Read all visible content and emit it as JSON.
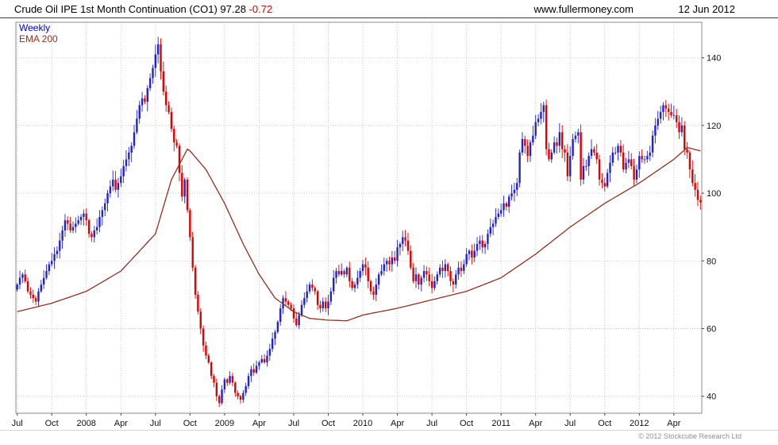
{
  "header": {
    "title_price": "Crude Oil IPE 1st Month Continuation (CO1) 97.28",
    "change": "-0.72",
    "site": "www.fullermoney.com",
    "date": "12 Jun 2012"
  },
  "legend": {
    "timeframe": "Weekly",
    "ema": "EMA 200"
  },
  "footer": {
    "copyright": "© 2012 Stockcube Research Ltd"
  },
  "colors": {
    "up": "#2222cc",
    "down": "#e00000",
    "ema": "#8b3222",
    "grid": "#c9c9c9",
    "border": "#8c8c8c",
    "tick": "#444444",
    "change": "#cc0000"
  },
  "chart_data": {
    "type": "candlestick",
    "title": "Crude Oil IPE 1st Month Continuation (CO1)",
    "timeframe": "Weekly",
    "last_price": 97.28,
    "change": -0.72,
    "overlay": "EMA 200",
    "ylim": [
      35,
      150.5
    ],
    "y_ticks": [
      40,
      60,
      80,
      100,
      120,
      140
    ],
    "x_ticks": [
      {
        "label": "Jul",
        "week": 0
      },
      {
        "label": "Oct",
        "week": 13
      },
      {
        "label": "2008",
        "week": 26
      },
      {
        "label": "Apr",
        "week": 39
      },
      {
        "label": "Jul",
        "week": 52
      },
      {
        "label": "Oct",
        "week": 65
      },
      {
        "label": "2009",
        "week": 78
      },
      {
        "label": "Apr",
        "week": 91
      },
      {
        "label": "Jul",
        "week": 104
      },
      {
        "label": "Oct",
        "week": 117
      },
      {
        "label": "2010",
        "week": 130
      },
      {
        "label": "Apr",
        "week": 143
      },
      {
        "label": "Jul",
        "week": 156
      },
      {
        "label": "Oct",
        "week": 169
      },
      {
        "label": "2011",
        "week": 182
      },
      {
        "label": "Apr",
        "week": 195
      },
      {
        "label": "Jul",
        "week": 208
      },
      {
        "label": "Oct",
        "week": 221
      },
      {
        "label": "2012",
        "week": 234
      },
      {
        "label": "Apr",
        "week": 247
      }
    ],
    "weekly_closes": [
      73,
      75,
      76,
      74,
      71,
      70,
      69,
      68,
      71,
      73,
      75,
      77,
      79,
      80,
      82,
      83,
      86,
      89,
      92,
      91,
      89,
      90,
      91,
      92,
      93,
      94,
      92,
      88,
      87,
      89,
      90,
      93,
      95,
      97,
      100,
      102,
      104,
      101,
      103,
      105,
      108,
      110,
      112,
      114,
      118,
      122,
      126,
      128,
      127,
      131,
      134,
      137,
      141,
      144,
      136,
      130,
      126,
      124,
      119,
      115,
      114,
      106,
      99,
      104,
      95,
      87,
      78,
      70,
      65,
      60,
      55,
      52,
      50,
      46,
      44,
      40,
      38,
      42,
      45,
      44,
      46,
      44,
      41,
      40,
      39,
      41,
      43,
      46,
      48,
      47,
      49,
      50,
      51,
      50,
      52,
      54,
      57,
      59,
      62,
      66,
      69,
      68,
      67,
      66,
      63,
      61,
      64,
      67,
      69,
      71,
      73,
      72,
      71,
      67,
      66,
      68,
      66,
      68,
      71,
      75,
      77,
      76,
      77,
      76,
      78,
      74,
      72,
      73,
      75,
      77,
      79,
      78,
      74,
      71,
      70,
      73,
      76,
      77,
      79,
      80,
      79,
      81,
      80,
      84,
      85,
      87,
      86,
      83,
      78,
      74,
      76,
      73,
      75,
      77,
      76,
      74,
      72,
      74,
      76,
      78,
      77,
      79,
      77,
      74,
      73,
      76,
      78,
      77,
      79,
      82,
      83,
      81,
      83,
      85,
      86,
      84,
      85,
      88,
      90,
      91,
      93,
      94,
      95,
      97,
      96,
      99,
      100,
      101,
      103,
      112,
      116,
      114,
      111,
      115,
      117,
      121,
      122,
      124,
      126,
      113,
      110,
      112,
      115,
      114,
      118,
      113,
      112,
      105,
      111,
      116,
      117,
      118,
      104,
      108,
      108,
      111,
      113,
      112,
      110,
      104,
      103,
      102,
      106,
      109,
      112,
      112,
      114,
      112,
      107,
      109,
      110,
      108,
      104,
      107,
      111,
      110,
      110,
      111,
      112,
      117,
      120,
      122,
      124,
      126,
      125,
      124,
      123,
      123,
      121,
      118,
      120,
      113,
      112,
      107,
      103,
      101,
      98,
      97.28
    ],
    "ema200_anchors": [
      [
        0,
        65
      ],
      [
        13,
        67.5
      ],
      [
        26,
        71
      ],
      [
        39,
        77
      ],
      [
        52,
        88
      ],
      [
        58,
        104
      ],
      [
        64,
        113
      ],
      [
        65,
        112.5
      ],
      [
        71,
        107
      ],
      [
        78,
        97
      ],
      [
        85,
        85
      ],
      [
        91,
        76
      ],
      [
        97,
        69
      ],
      [
        104,
        65
      ],
      [
        110,
        63
      ],
      [
        117,
        62.5
      ],
      [
        124,
        62.3
      ],
      [
        130,
        64
      ],
      [
        143,
        66
      ],
      [
        156,
        68.5
      ],
      [
        169,
        71
      ],
      [
        182,
        75
      ],
      [
        195,
        82
      ],
      [
        208,
        90
      ],
      [
        221,
        97
      ],
      [
        234,
        103
      ],
      [
        247,
        110
      ],
      [
        252,
        113.5
      ],
      [
        257,
        112.5
      ]
    ]
  }
}
